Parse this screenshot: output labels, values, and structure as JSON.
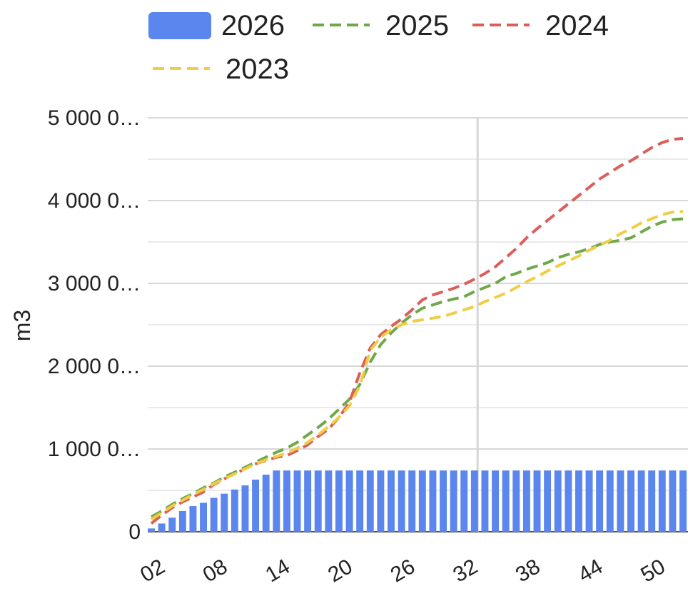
{
  "chart_data": {
    "type": "bar",
    "ylabel": "m3",
    "xlabel": "",
    "ylim": [
      0,
      5000000
    ],
    "y_tick_labels": [
      "0",
      "1 000 0…",
      "2 000 0…",
      "3 000 0…",
      "4 000 0…",
      "5 000 0…"
    ],
    "y_tick_values": [
      0,
      1000000,
      2000000,
      3000000,
      4000000,
      5000000
    ],
    "x_tick_labels": [
      "02",
      "08",
      "14",
      "20",
      "26",
      "32",
      "38",
      "44",
      "50"
    ],
    "x_tick_weeks": [
      2,
      8,
      14,
      20,
      26,
      32,
      38,
      44,
      50
    ],
    "grid": true,
    "legend_position": "top",
    "weeks": [
      1,
      2,
      3,
      4,
      5,
      6,
      7,
      8,
      9,
      10,
      11,
      12,
      13,
      14,
      15,
      16,
      17,
      18,
      19,
      20,
      21,
      22,
      23,
      24,
      25,
      26,
      27,
      28,
      29,
      30,
      31,
      32,
      33,
      34,
      35,
      36,
      37,
      38,
      39,
      40,
      41,
      42,
      43,
      44,
      45,
      46,
      47,
      48,
      49,
      50,
      51,
      52
    ],
    "series": [
      {
        "name": "2026",
        "kind": "bar",
        "color": "#5b86ee",
        "values": [
          40000,
          100000,
          170000,
          250000,
          310000,
          350000,
          410000,
          460000,
          510000,
          560000,
          630000,
          690000,
          740000,
          740000,
          740000,
          740000,
          740000,
          740000,
          740000,
          740000,
          740000,
          740000,
          740000,
          740000,
          740000,
          740000,
          740000,
          740000,
          740000,
          740000,
          740000,
          740000,
          740000,
          740000,
          740000,
          740000,
          740000,
          740000,
          740000,
          740000,
          740000,
          740000,
          740000,
          740000,
          740000,
          740000,
          740000,
          740000,
          740000,
          740000,
          740000,
          740000
        ]
      },
      {
        "name": "2025",
        "kind": "dashed-line",
        "color": "#6fa84a",
        "values": [
          180000,
          250000,
          330000,
          400000,
          460000,
          530000,
          590000,
          660000,
          720000,
          780000,
          840000,
          900000,
          960000,
          1010000,
          1080000,
          1170000,
          1260000,
          1360000,
          1480000,
          1600000,
          1780000,
          2050000,
          2260000,
          2400000,
          2520000,
          2620000,
          2700000,
          2740000,
          2780000,
          2810000,
          2840000,
          2900000,
          2950000,
          3000000,
          3080000,
          3120000,
          3170000,
          3210000,
          3250000,
          3310000,
          3350000,
          3380000,
          3420000,
          3470000,
          3500000,
          3520000,
          3550000,
          3620000,
          3690000,
          3740000,
          3770000,
          3780000
        ]
      },
      {
        "name": "2024",
        "kind": "dashed-line",
        "color": "#d9605a",
        "values": [
          100000,
          200000,
          290000,
          360000,
          420000,
          480000,
          570000,
          640000,
          700000,
          760000,
          820000,
          860000,
          900000,
          920000,
          980000,
          1050000,
          1150000,
          1240000,
          1380000,
          1560000,
          1920000,
          2220000,
          2380000,
          2480000,
          2570000,
          2680000,
          2800000,
          2860000,
          2900000,
          2940000,
          2990000,
          3050000,
          3120000,
          3200000,
          3310000,
          3420000,
          3550000,
          3660000,
          3760000,
          3860000,
          3960000,
          4060000,
          4160000,
          4260000,
          4340000,
          4420000,
          4480000,
          4560000,
          4640000,
          4700000,
          4740000,
          4750000
        ]
      },
      {
        "name": "2023",
        "kind": "dashed-line",
        "color": "#f1cd45",
        "values": [
          150000,
          230000,
          310000,
          380000,
          450000,
          510000,
          580000,
          640000,
          700000,
          760000,
          820000,
          870000,
          910000,
          950000,
          1010000,
          1080000,
          1170000,
          1270000,
          1380000,
          1520000,
          1760000,
          2190000,
          2350000,
          2440000,
          2500000,
          2540000,
          2560000,
          2580000,
          2600000,
          2640000,
          2680000,
          2720000,
          2780000,
          2830000,
          2880000,
          2950000,
          3020000,
          3080000,
          3150000,
          3210000,
          3270000,
          3330000,
          3400000,
          3460000,
          3520000,
          3600000,
          3660000,
          3730000,
          3780000,
          3830000,
          3860000,
          3870000
        ]
      }
    ]
  }
}
